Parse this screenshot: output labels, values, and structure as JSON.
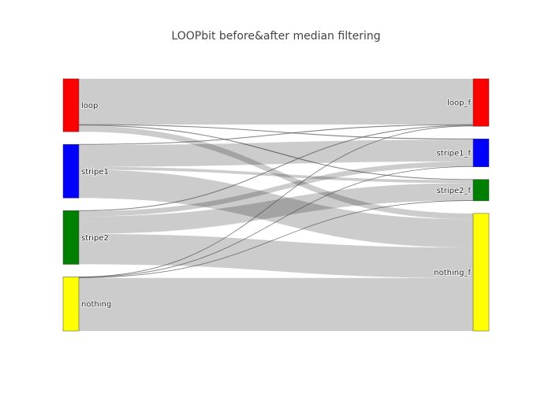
{
  "chart_data": {
    "type": "sankey",
    "title": "LOOPbit before&after median filtering",
    "nodes": [
      {
        "id": "loop",
        "label": "loop",
        "color": "#ff0000",
        "side": "source"
      },
      {
        "id": "stripe1",
        "label": "stripe1",
        "color": "#0000ff",
        "side": "source"
      },
      {
        "id": "stripe2",
        "label": "stripe2",
        "color": "#008000",
        "side": "source"
      },
      {
        "id": "nothing",
        "label": "nothing",
        "color": "#ffff00",
        "side": "source"
      },
      {
        "id": "loop_f",
        "label": "loop_f",
        "color": "#ff0000",
        "side": "target"
      },
      {
        "id": "stripe1_f",
        "label": "stripe1_f",
        "color": "#0000ff",
        "side": "target"
      },
      {
        "id": "stripe2_f",
        "label": "stripe2_f",
        "color": "#008000",
        "side": "target"
      },
      {
        "id": "nothing_f",
        "label": "nothing_f",
        "color": "#ffff00",
        "side": "target"
      }
    ],
    "links": [
      {
        "source": "loop",
        "target": "loop_f",
        "value": 63
      },
      {
        "source": "loop",
        "target": "stripe1_f",
        "value": 1
      },
      {
        "source": "loop",
        "target": "stripe2_f",
        "value": 1
      },
      {
        "source": "loop",
        "target": "nothing_f",
        "value": 8
      },
      {
        "source": "stripe1",
        "target": "loop_f",
        "value": 1
      },
      {
        "source": "stripe1",
        "target": "stripe1_f",
        "value": 30
      },
      {
        "source": "stripe1",
        "target": "stripe2_f",
        "value": 4
      },
      {
        "source": "stripe1",
        "target": "nothing_f",
        "value": 39
      },
      {
        "source": "stripe2",
        "target": "loop_f",
        "value": 1
      },
      {
        "source": "stripe2",
        "target": "stripe1_f",
        "value": 7
      },
      {
        "source": "stripe2",
        "target": "stripe2_f",
        "value": 24
      },
      {
        "source": "stripe2",
        "target": "nothing_f",
        "value": 42
      },
      {
        "source": "nothing",
        "target": "loop_f",
        "value": 0.5
      },
      {
        "source": "nothing",
        "target": "stripe1_f",
        "value": 0.5
      },
      {
        "source": "nothing",
        "target": "stripe2_f",
        "value": 0.5
      },
      {
        "source": "nothing",
        "target": "nothing_f",
        "value": 73
      }
    ]
  }
}
